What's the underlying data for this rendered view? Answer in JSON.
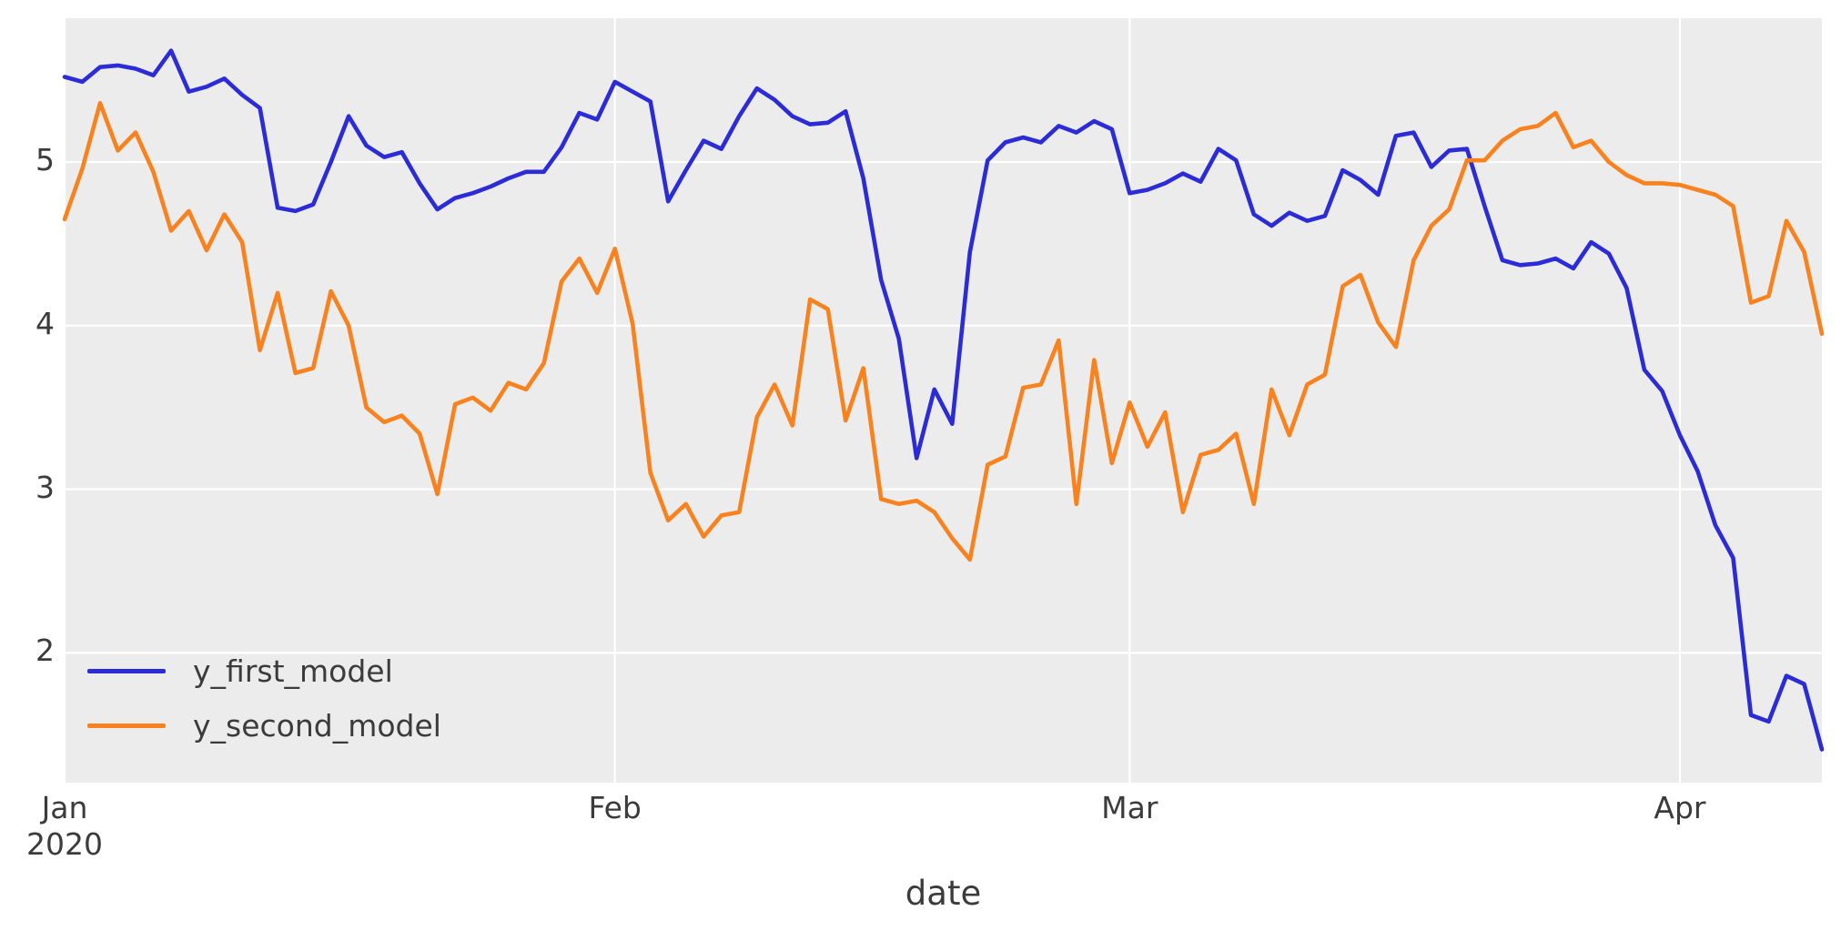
{
  "figure": {
    "background_color": "#ffffff",
    "plot_background_color": "#ececec",
    "gridline_color": "#ffffff",
    "text_color": "#3b3b3b"
  },
  "chart_data": {
    "type": "line",
    "title": "",
    "xlabel": "date",
    "ylabel": "",
    "grid": true,
    "legend_position": "lower left",
    "ylim": [
      1.2,
      5.9
    ],
    "yticks": [
      5,
      4,
      3,
      2
    ],
    "xticks": [
      {
        "label": "Jan",
        "sublabel": "2020",
        "index": 0
      },
      {
        "label": "Feb",
        "sublabel": "",
        "index": 31
      },
      {
        "label": "Mar",
        "sublabel": "",
        "index": 60
      },
      {
        "label": "Apr",
        "sublabel": "",
        "index": 91
      }
    ],
    "x": [
      "2020-01-01",
      "2020-01-02",
      "2020-01-03",
      "2020-01-04",
      "2020-01-05",
      "2020-01-06",
      "2020-01-07",
      "2020-01-08",
      "2020-01-09",
      "2020-01-10",
      "2020-01-11",
      "2020-01-12",
      "2020-01-13",
      "2020-01-14",
      "2020-01-15",
      "2020-01-16",
      "2020-01-17",
      "2020-01-18",
      "2020-01-19",
      "2020-01-20",
      "2020-01-21",
      "2020-01-22",
      "2020-01-23",
      "2020-01-24",
      "2020-01-25",
      "2020-01-26",
      "2020-01-27",
      "2020-01-28",
      "2020-01-29",
      "2020-01-30",
      "2020-01-31",
      "2020-02-01",
      "2020-02-02",
      "2020-02-03",
      "2020-02-04",
      "2020-02-05",
      "2020-02-06",
      "2020-02-07",
      "2020-02-08",
      "2020-02-09",
      "2020-02-10",
      "2020-02-11",
      "2020-02-12",
      "2020-02-13",
      "2020-02-14",
      "2020-02-15",
      "2020-02-16",
      "2020-02-17",
      "2020-02-18",
      "2020-02-19",
      "2020-02-20",
      "2020-02-21",
      "2020-02-22",
      "2020-02-23",
      "2020-02-24",
      "2020-02-25",
      "2020-02-26",
      "2020-02-27",
      "2020-02-28",
      "2020-02-29",
      "2020-03-01",
      "2020-03-02",
      "2020-03-03",
      "2020-03-04",
      "2020-03-05",
      "2020-03-06",
      "2020-03-07",
      "2020-03-08",
      "2020-03-09",
      "2020-03-10",
      "2020-03-11",
      "2020-03-12",
      "2020-03-13",
      "2020-03-14",
      "2020-03-15",
      "2020-03-16",
      "2020-03-17",
      "2020-03-18",
      "2020-03-19",
      "2020-03-20",
      "2020-03-21",
      "2020-03-22",
      "2020-03-23",
      "2020-03-24",
      "2020-03-25",
      "2020-03-26",
      "2020-03-27",
      "2020-03-28",
      "2020-03-29",
      "2020-03-30",
      "2020-03-31",
      "2020-04-01",
      "2020-04-02",
      "2020-04-03",
      "2020-04-04",
      "2020-04-05",
      "2020-04-06",
      "2020-04-07",
      "2020-04-08",
      "2020-04-09"
    ],
    "series": [
      {
        "name": "y_first_model",
        "color": "#2b2bd8",
        "values": [
          5.52,
          5.49,
          5.58,
          5.59,
          5.57,
          5.53,
          5.68,
          5.43,
          5.46,
          5.51,
          5.41,
          5.33,
          4.72,
          4.7,
          4.74,
          5.0,
          5.28,
          5.1,
          5.03,
          5.06,
          4.87,
          4.71,
          4.78,
          4.81,
          4.85,
          4.9,
          4.94,
          4.94,
          5.09,
          5.3,
          5.26,
          5.49,
          5.43,
          5.37,
          4.76,
          4.95,
          5.13,
          5.08,
          5.28,
          5.45,
          5.38,
          5.28,
          5.23,
          5.24,
          5.31,
          4.9,
          4.28,
          3.92,
          3.19,
          3.61,
          3.4,
          4.45,
          5.01,
          5.12,
          5.15,
          5.12,
          5.22,
          5.18,
          5.25,
          5.2,
          4.81,
          4.83,
          4.87,
          4.93,
          4.88,
          5.08,
          5.01,
          4.68,
          4.61,
          4.69,
          4.64,
          4.67,
          4.95,
          4.89,
          4.8,
          5.16,
          5.18,
          4.97,
          5.07,
          5.08,
          4.73,
          4.4,
          4.37,
          4.38,
          4.41,
          4.35,
          4.51,
          4.44,
          4.23,
          3.73,
          3.6,
          3.33,
          3.11,
          2.78,
          2.58,
          1.62,
          1.58,
          1.86,
          1.81,
          1.41
        ]
      },
      {
        "name": "y_second_model",
        "color": "#f9821f",
        "values": [
          4.65,
          4.96,
          5.36,
          5.07,
          5.18,
          4.94,
          4.58,
          4.7,
          4.46,
          4.68,
          4.51,
          3.85,
          4.2,
          3.71,
          3.74,
          4.21,
          4.0,
          3.5,
          3.41,
          3.45,
          3.34,
          2.97,
          3.52,
          3.56,
          3.48,
          3.65,
          3.61,
          3.77,
          4.27,
          4.41,
          4.2,
          4.47,
          4.01,
          3.1,
          2.81,
          2.91,
          2.71,
          2.84,
          2.86,
          3.44,
          3.64,
          3.39,
          4.16,
          4.1,
          3.42,
          3.74,
          2.94,
          2.91,
          2.93,
          2.86,
          2.7,
          2.57,
          3.15,
          3.2,
          3.62,
          3.64,
          3.91,
          2.91,
          3.79,
          3.16,
          3.53,
          3.26,
          3.47,
          2.86,
          3.21,
          3.24,
          3.34,
          2.91,
          3.61,
          3.33,
          3.64,
          3.7,
          4.24,
          4.31,
          4.02,
          3.87,
          4.4,
          4.61,
          4.71,
          5.01,
          5.01,
          5.13,
          5.2,
          5.22,
          5.3,
          5.09,
          5.13,
          5.0,
          4.92,
          4.87,
          4.87,
          4.86,
          4.83,
          4.8,
          4.73,
          4.14,
          4.18,
          4.64,
          4.45,
          3.95
        ]
      }
    ]
  }
}
